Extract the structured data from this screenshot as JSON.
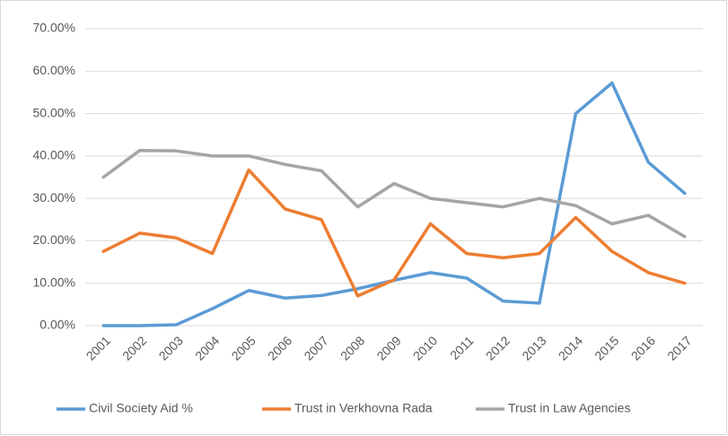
{
  "chart_data": {
    "type": "line",
    "categories": [
      "2001",
      "2002",
      "2003",
      "2004",
      "2005",
      "2006",
      "2007",
      "2008",
      "2009",
      "2010",
      "2011",
      "2012",
      "2013",
      "2014",
      "2015",
      "2016",
      "2017"
    ],
    "series": [
      {
        "name": "Civil Society Aid %",
        "color": "#5b9bd5",
        "values": [
          0,
          0,
          0.2,
          4,
          8.3,
          6.5,
          7.1,
          8.7,
          10.7,
          12.5,
          11.2,
          5.8,
          5.3,
          50,
          57.2,
          38.5,
          31.2
        ]
      },
      {
        "name": "Trust in Verkhovna Rada",
        "color": "#ed7d31",
        "values": [
          17.5,
          21.8,
          20.7,
          17,
          36.7,
          27.5,
          25,
          7,
          10.8,
          24,
          17,
          16,
          17,
          25.5,
          17.5,
          12.5,
          10
        ]
      },
      {
        "name": "Trust in Law Agencies",
        "color": "#a5a5a5",
        "values": [
          35,
          41.3,
          41.2,
          40,
          40,
          38,
          36.5,
          28,
          33.5,
          30,
          29,
          28,
          30,
          28.3,
          24,
          26,
          21
        ]
      }
    ],
    "ylim": [
      0,
      70
    ],
    "yticks": [
      {
        "value": 0,
        "label": "0.00%"
      },
      {
        "value": 10,
        "label": "10.00%"
      },
      {
        "value": 20,
        "label": "20.00%"
      },
      {
        "value": 30,
        "label": "30.00%"
      },
      {
        "value": 40,
        "label": "40.00%"
      },
      {
        "value": 50,
        "label": "50.00%"
      },
      {
        "value": 60,
        "label": "60.00%"
      },
      {
        "value": 70,
        "label": "70.00%"
      }
    ],
    "grid": true,
    "legend": "bottom"
  }
}
